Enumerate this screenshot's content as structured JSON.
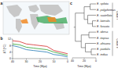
{
  "map": {
    "label": "a"
  },
  "chart_data": {
    "type": "line",
    "title": "b",
    "x_label": "Time (Mya)",
    "y_label": "ΔT (°C)",
    "x": [
      40,
      35,
      30,
      25,
      20,
      15,
      10,
      5,
      0
    ],
    "series": [
      {
        "color": "#d62728",
        "values": [
          11,
          10.5,
          9,
          8.5,
          8,
          7.5,
          5,
          4,
          3
        ]
      },
      {
        "color": "#2ca02c",
        "values": [
          9,
          8.5,
          7,
          6.5,
          6,
          5.5,
          4,
          3,
          2
        ]
      },
      {
        "color": "#1f77b4",
        "values": [
          8,
          7,
          5.5,
          5,
          4.5,
          4,
          2.5,
          2,
          1
        ]
      }
    ],
    "xlim": [
      40,
      0
    ],
    "ylim": [
      0,
      12
    ],
    "xticks": [
      40,
      30,
      20,
      10,
      0
    ],
    "yticks": [
      0,
      4,
      8,
      12
    ]
  },
  "tree": {
    "label": "c",
    "x_label": "Time (Mya)",
    "xlim": [
      40,
      0
    ],
    "xticks": [
      40,
      20,
      0
    ],
    "root": {
      "age": 35,
      "children": [
        {
          "age": 20,
          "children": [
            {
              "age": 10,
              "children": [
                {
                  "label": "E. spilota"
                },
                {
                  "label": "E. polyphemus"
                }
              ]
            },
            {
              "age": 14,
              "children": [
                {
                  "label": "E. scutellata"
                },
                {
                  "age": 6,
                  "children": [
                    {
                      "label": "E. lateralis"
                    },
                    {
                      "label": "E. fuscata"
                    }
                  ]
                }
              ]
            }
          ]
        },
        {
          "age": 25,
          "children": [
            {
              "age": 12,
              "children": [
                {
                  "label": "E. obesa"
                },
                {
                  "label": "E. tropica"
                }
              ]
            },
            {
              "age": 18,
              "children": [
                {
                  "label": "E. africana"
                },
                {
                  "age": 8,
                  "children": [
                    {
                      "label": "E. pardalis"
                    },
                    {
                      "label": "E. indica"
                    }
                  ]
                }
              ]
            }
          ]
        }
      ]
    },
    "groups": [
      {
        "label": "Clade I",
        "first": 0,
        "last": 4
      },
      {
        "label": "Clade II",
        "first": 5,
        "last": 9
      }
    ]
  }
}
